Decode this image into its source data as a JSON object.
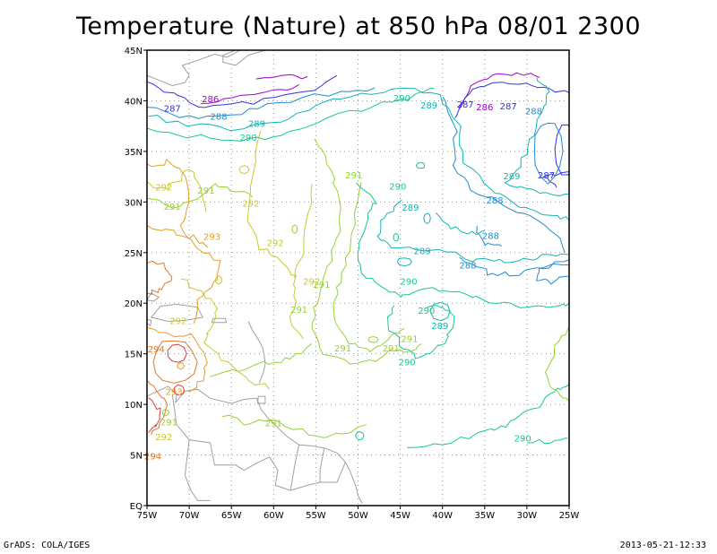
{
  "title": "Temperature (Nature) at 850 hPa 08/01 2300",
  "footer": {
    "left": "GrADS: COLA/IGES",
    "right": "2013-05-21-12:33"
  },
  "lon_ticks": [
    "75W",
    "70W",
    "65W",
    "60W",
    "55W",
    "50W",
    "45W",
    "40W",
    "35W",
    "30W",
    "25W"
  ],
  "lat_ticks": [
    "EQ",
    "5N",
    "10N",
    "15N",
    "20N",
    "25N",
    "30N",
    "35N",
    "40N",
    "45N"
  ],
  "colors": {
    "286": "#a000c8",
    "287": "#3232e6",
    "288": "#1e8cd2",
    "289": "#14b4b4",
    "290": "#14c896",
    "291": "#96d232",
    "292": "#c8c832",
    "293": "#e0a028",
    "294": "#e07828",
    "295": "#e03c3c",
    "land": "#a0a0a0",
    "grid": "#9a9a9a"
  },
  "contour_labels": [
    {
      "t": "286",
      "lon": -67.5,
      "lat": 40.2
    },
    {
      "t": "287",
      "lon": -72.0,
      "lat": 39.3
    },
    {
      "t": "288",
      "lon": -66.5,
      "lat": 38.5
    },
    {
      "t": "289",
      "lon": -62.0,
      "lat": 37.8
    },
    {
      "t": "290",
      "lon": -63.0,
      "lat": 36.4
    },
    {
      "t": "290",
      "lon": -44.8,
      "lat": 40.3
    },
    {
      "t": "289",
      "lon": -41.6,
      "lat": 39.6
    },
    {
      "t": "287",
      "lon": -37.3,
      "lat": 39.7
    },
    {
      "t": "286",
      "lon": -35.0,
      "lat": 39.4
    },
    {
      "t": "287",
      "lon": -32.2,
      "lat": 39.5
    },
    {
      "t": "288",
      "lon": -29.2,
      "lat": 39.0
    },
    {
      "t": "289",
      "lon": -31.8,
      "lat": 32.6
    },
    {
      "t": "287",
      "lon": -27.7,
      "lat": 32.7
    },
    {
      "t": "291",
      "lon": -50.5,
      "lat": 32.7
    },
    {
      "t": "290",
      "lon": -45.3,
      "lat": 31.6
    },
    {
      "t": "289",
      "lon": -43.8,
      "lat": 29.5
    },
    {
      "t": "288",
      "lon": -33.8,
      "lat": 30.2
    },
    {
      "t": "288",
      "lon": -34.3,
      "lat": 26.7
    },
    {
      "t": "289",
      "lon": -42.4,
      "lat": 25.2
    },
    {
      "t": "288",
      "lon": -37.0,
      "lat": 23.8
    },
    {
      "t": "290",
      "lon": -44.0,
      "lat": 22.2
    },
    {
      "t": "292",
      "lon": -73.0,
      "lat": 31.5
    },
    {
      "t": "291",
      "lon": -68.0,
      "lat": 31.2
    },
    {
      "t": "292",
      "lon": -62.7,
      "lat": 29.9
    },
    {
      "t": "291",
      "lon": -72.0,
      "lat": 29.6
    },
    {
      "t": "293",
      "lon": -67.3,
      "lat": 26.6
    },
    {
      "t": "292",
      "lon": -59.8,
      "lat": 26.0
    },
    {
      "t": "292",
      "lon": -55.5,
      "lat": 22.2
    },
    {
      "t": "291",
      "lon": -54.3,
      "lat": 21.9
    },
    {
      "t": "291",
      "lon": -57.0,
      "lat": 19.4
    },
    {
      "t": "292",
      "lon": -71.3,
      "lat": 18.3
    },
    {
      "t": "290",
      "lon": -41.9,
      "lat": 19.3
    },
    {
      "t": "289",
      "lon": -40.3,
      "lat": 17.8
    },
    {
      "t": "291",
      "lon": -43.9,
      "lat": 16.5
    },
    {
      "t": "291",
      "lon": -51.8,
      "lat": 15.6
    },
    {
      "t": "291",
      "lon": -46.1,
      "lat": 15.6
    },
    {
      "t": "290",
      "lon": -44.2,
      "lat": 14.2
    },
    {
      "t": "294",
      "lon": -73.9,
      "lat": 15.5
    },
    {
      "t": "293",
      "lon": -71.8,
      "lat": 11.3
    },
    {
      "t": "291",
      "lon": -72.4,
      "lat": 8.3
    },
    {
      "t": "292",
      "lon": -73.0,
      "lat": 6.8
    },
    {
      "t": "294",
      "lon": -74.3,
      "lat": 4.9
    },
    {
      "t": "291",
      "lon": -60.0,
      "lat": 8.2
    },
    {
      "t": "290",
      "lon": -30.5,
      "lat": 6.7
    }
  ]
}
